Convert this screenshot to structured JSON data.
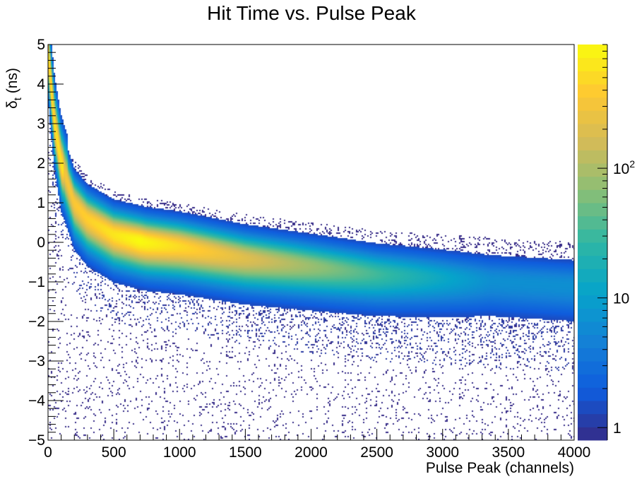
{
  "chart_data": {
    "type": "heatmap",
    "title": "Hit Time vs. Pulse Peak",
    "xlabel": "Pulse Peak (channels)",
    "ylabel_main": "δ",
    "ylabel_sub": "t",
    "ylabel_unit": " (ns)",
    "xlim": [
      0,
      4000
    ],
    "ylim": [
      -5,
      5
    ],
    "xticks": [
      0,
      500,
      1000,
      1500,
      2000,
      2500,
      3000,
      3500,
      4000
    ],
    "xtick_labels": [
      "0",
      "500",
      "1000",
      "1500",
      "2000",
      "2500",
      "3000",
      "3500",
      "4000"
    ],
    "yticks": [
      -5,
      -4,
      -3,
      -2,
      -1,
      0,
      1,
      2,
      3,
      4,
      5
    ],
    "ytick_labels": [
      "−5",
      "−4",
      "−3",
      "−2",
      "−1",
      "0",
      "1",
      "2",
      "3",
      "4",
      "5"
    ],
    "z_scale": "log",
    "z_range": [
      0.8,
      900
    ],
    "colorbar_ticks": [
      {
        "value": 1,
        "base": "1",
        "exp": ""
      },
      {
        "value": 10,
        "base": "10",
        "exp": ""
      },
      {
        "value": 100,
        "base": "10",
        "exp": "2"
      }
    ],
    "band_ridge": [
      {
        "x": 0,
        "y": 4.8
      },
      {
        "x": 50,
        "y": 3.0
      },
      {
        "x": 100,
        "y": 2.0
      },
      {
        "x": 200,
        "y": 1.0
      },
      {
        "x": 300,
        "y": 0.6
      },
      {
        "x": 500,
        "y": 0.2
      },
      {
        "x": 750,
        "y": 0.0
      },
      {
        "x": 1000,
        "y": -0.1
      },
      {
        "x": 1500,
        "y": -0.4
      },
      {
        "x": 2000,
        "y": -0.6
      },
      {
        "x": 2500,
        "y": -0.8
      },
      {
        "x": 3000,
        "y": -0.9
      },
      {
        "x": 3500,
        "y": -1.0
      },
      {
        "x": 4000,
        "y": -1.1
      }
    ],
    "colors": [
      "#352a87",
      "#0f5cdd",
      "#1481d6",
      "#06a4ca",
      "#2eb7a4",
      "#87bf77",
      "#d1bb59",
      "#fec832",
      "#f9fb0e"
    ]
  }
}
